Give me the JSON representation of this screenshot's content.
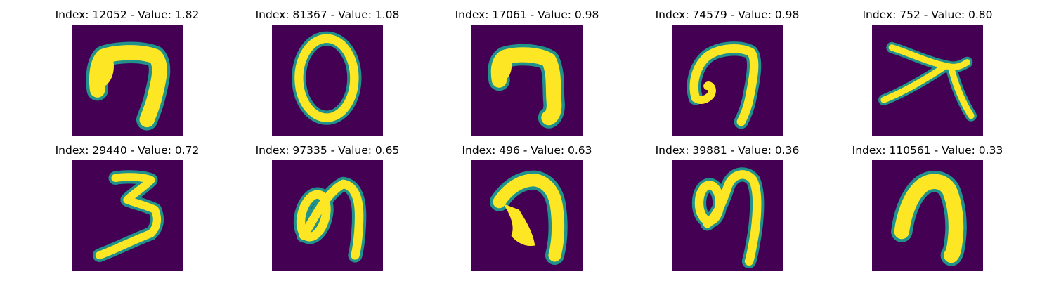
{
  "colors": {
    "background": "#440154",
    "edge": "#21918c",
    "mid": "#5ec962",
    "fill": "#fde725"
  },
  "panels": [
    {
      "title": "Index: 12052 - Value: 1.82",
      "glyph": "digit-seven-like"
    },
    {
      "title": "Index: 81367 - Value: 1.08",
      "glyph": "digit-zero"
    },
    {
      "title": "Index: 17061 - Value: 0.98",
      "glyph": "digit-seven-like"
    },
    {
      "title": "Index: 74579 - Value: 0.98",
      "glyph": "digit-seven-curl"
    },
    {
      "title": "Index: 752 - Value: 0.80",
      "glyph": "digit-seven-cross"
    },
    {
      "title": "Index: 29440 - Value: 0.72",
      "glyph": "digit-three"
    },
    {
      "title": "Index: 97335 - Value: 0.65",
      "glyph": "digit-loop"
    },
    {
      "title": "Index: 496 - Value: 0.63",
      "glyph": "digit-loop-thick"
    },
    {
      "title": "Index: 39881 - Value: 0.36",
      "glyph": "digit-loop"
    },
    {
      "title": "Index: 110561 - Value: 0.33",
      "glyph": "digit-seven-thick"
    }
  ]
}
